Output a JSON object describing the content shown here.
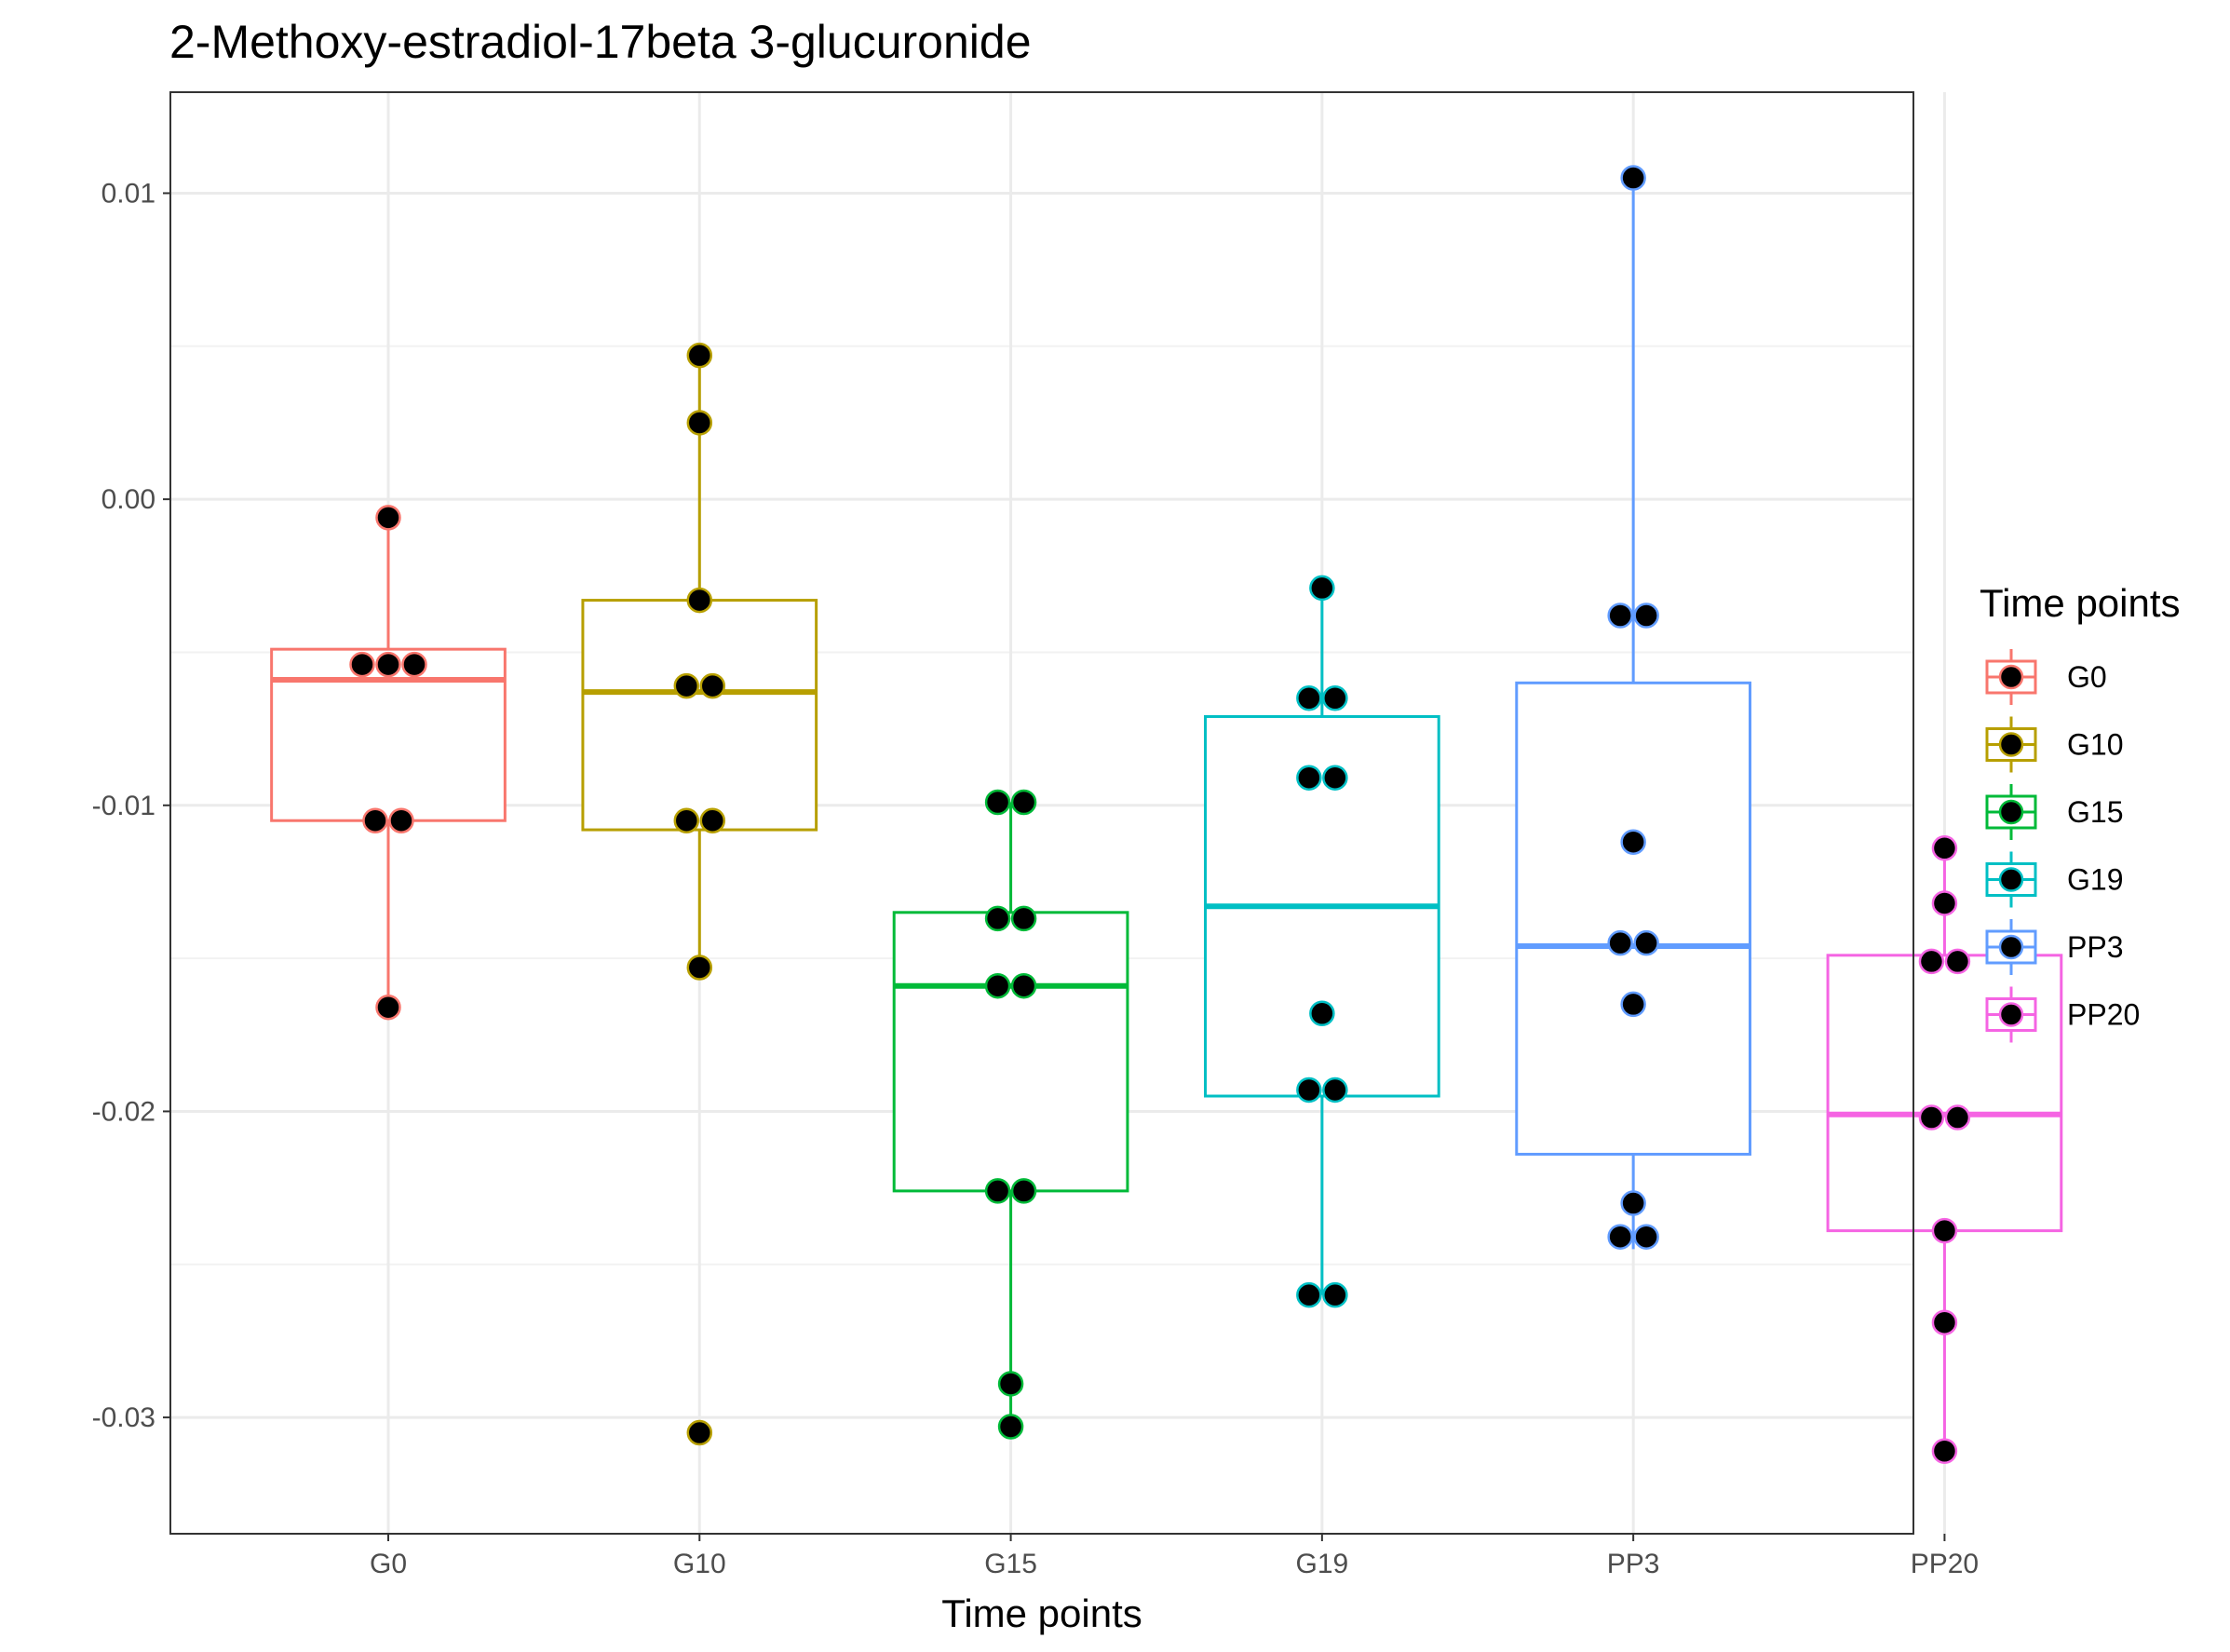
{
  "chart_data": {
    "type": "boxplot",
    "title": "2-Methoxy-estradiol-17beta 3-glucuronide",
    "xlabel": "Time points",
    "ylabel": "",
    "categories": [
      "G0",
      "G10",
      "G15",
      "G19",
      "PP3",
      "PP20"
    ],
    "ylim": [
      -0.0338,
      0.0133
    ],
    "yticks": [
      0.01,
      0.0,
      -0.01,
      -0.02,
      -0.03
    ],
    "ytick_labels": [
      "0.01",
      "0.00",
      "-0.01",
      "-0.02",
      "-0.03"
    ],
    "grid": true,
    "legend": {
      "title": "Time points",
      "placement": "right",
      "entries": [
        "G0",
        "G10",
        "G15",
        "G19",
        "PP3",
        "PP20"
      ]
    },
    "colors": [
      "#F8766D",
      "#B79F00",
      "#00BA38",
      "#00BFC4",
      "#619CFF",
      "#F564E3"
    ],
    "point_fill": "#000000",
    "boxes": [
      {
        "name": "G0",
        "q1": -0.0105,
        "median": -0.0059,
        "q3": -0.0049,
        "whisker_low": -0.0166,
        "whisker_high": -0.0006
      },
      {
        "name": "G10",
        "q1": -0.0108,
        "median": -0.0063,
        "q3": -0.0033,
        "whisker_low": -0.0153,
        "whisker_high": 0.0047
      },
      {
        "name": "G15",
        "q1": -0.0226,
        "median": -0.0159,
        "q3": -0.0135,
        "whisker_low": -0.0303,
        "whisker_high": -0.0099
      },
      {
        "name": "G19",
        "q1": -0.0195,
        "median": -0.0133,
        "q3": -0.0071,
        "whisker_low": -0.026,
        "whisker_high": -0.0029
      },
      {
        "name": "PP3",
        "q1": -0.0214,
        "median": -0.0146,
        "q3": -0.006,
        "whisker_low": -0.0245,
        "whisker_high": 0.0105
      },
      {
        "name": "PP20",
        "q1": -0.0239,
        "median": -0.0201,
        "q3": -0.0149,
        "whisker_low": -0.0311,
        "whisker_high": -0.0114
      }
    ],
    "points": [
      {
        "category": "G0",
        "values": [
          -0.0006,
          -0.0054,
          -0.0054,
          -0.0054,
          -0.0105,
          -0.0105,
          -0.0166
        ]
      },
      {
        "category": "G10",
        "values": [
          0.0047,
          0.0025,
          -0.0033,
          -0.0061,
          -0.0061,
          -0.0105,
          -0.0105,
          -0.0153,
          -0.0305
        ]
      },
      {
        "category": "G15",
        "values": [
          -0.0099,
          -0.0099,
          -0.0137,
          -0.0137,
          -0.0159,
          -0.0159,
          -0.0226,
          -0.0226,
          -0.0289,
          -0.0303
        ]
      },
      {
        "category": "G19",
        "values": [
          -0.0029,
          -0.0065,
          -0.0065,
          -0.0091,
          -0.0091,
          -0.0168,
          -0.0193,
          -0.0193,
          -0.026,
          -0.026
        ]
      },
      {
        "category": "PP3",
        "values": [
          0.0105,
          -0.0038,
          -0.0038,
          -0.0112,
          -0.0145,
          -0.0145,
          -0.0165,
          -0.023,
          -0.0241,
          -0.0241
        ]
      },
      {
        "category": "PP20",
        "values": [
          -0.0114,
          -0.0132,
          -0.0151,
          -0.0151,
          -0.0202,
          -0.0202,
          -0.0239,
          -0.0269,
          -0.0311
        ]
      }
    ]
  }
}
